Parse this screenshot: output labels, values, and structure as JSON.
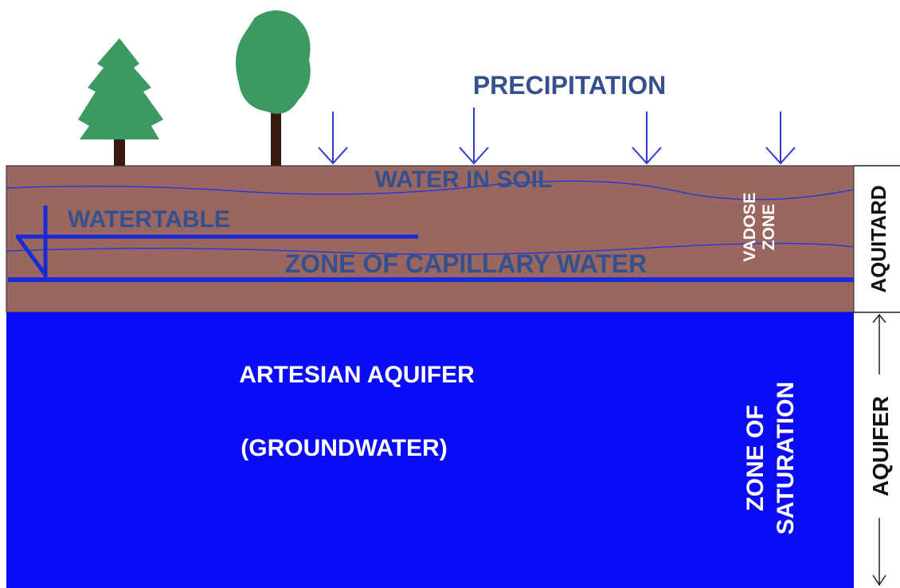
{
  "labels": {
    "precipitation": "PRECIPITATION",
    "water_in_soil": "WATER IN SOIL",
    "watertable": "WATERTABLE",
    "capillary": "ZONE OF CAPILLARY WATER",
    "vadose_zone": [
      "VADOSE",
      "ZONE"
    ],
    "aquitard": "AQUITARD",
    "artesian_aquifer": "ARTESIAN AQUIFER",
    "groundwater": "(GROUNDWATER)",
    "zone_of_saturation": [
      "ZONE OF",
      "SATURATION"
    ],
    "aquifer": "AQUIFER"
  }
}
